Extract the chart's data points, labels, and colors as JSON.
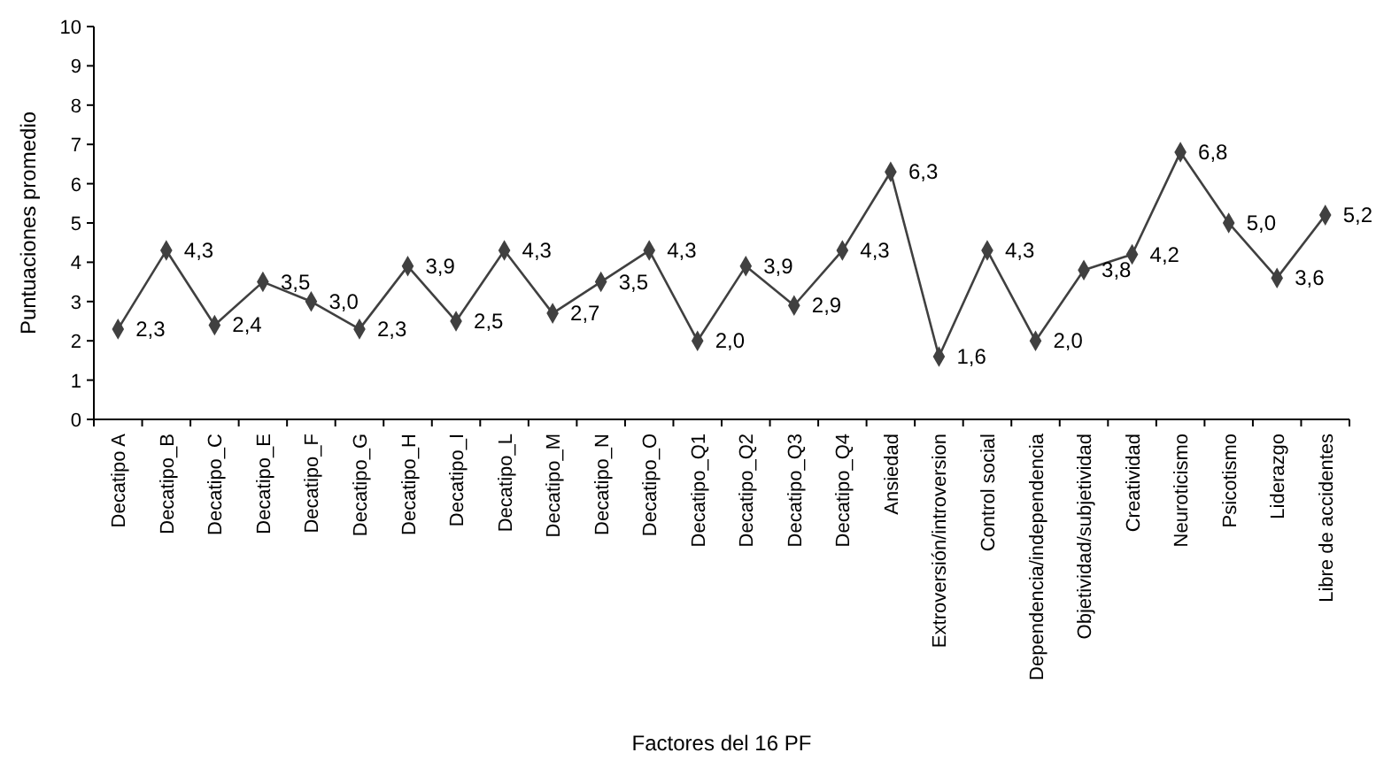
{
  "chart_data": {
    "type": "line",
    "xlabel": "Factores del 16 PF",
    "ylabel": "Puntuaciones promedio",
    "categories": [
      "Decatipo A",
      "Decatipo_B",
      "Decatipo_C",
      "Decatipo_E",
      "Decatipo_F",
      "Decatipo_G",
      "Decatipo_H",
      "Decatipo_I",
      "Decatipo_L",
      "Decatipo_M",
      "Decatipo_N",
      "Decatipo_O",
      "Decatipo_Q1",
      "Decatipo_Q2",
      "Decatipo_Q3",
      "Decatipo_Q4",
      "Ansiedad",
      "Extroversión/introversion",
      "Control social",
      "Dependencia/independencia",
      "Objetividad/subjetividad",
      "Creatividad",
      "Neuroticismo",
      "Psicotismo",
      "Liderazgo",
      "Libre de accidentes"
    ],
    "values": [
      2.3,
      4.3,
      2.4,
      3.5,
      3.0,
      2.3,
      3.9,
      2.5,
      4.3,
      2.7,
      3.5,
      4.3,
      2.0,
      3.9,
      2.9,
      4.3,
      6.3,
      1.6,
      4.3,
      2.0,
      3.8,
      4.2,
      6.8,
      5.0,
      3.6,
      5.2
    ],
    "value_labels": [
      "2,3",
      "4,3",
      "2,4",
      "3,5",
      "3,0",
      "2,3",
      "3,9",
      "2,5",
      "4,3",
      "2,7",
      "3,5",
      "4,3",
      "2,0",
      "3,9",
      "2,9",
      "4,3",
      "6,3",
      "1,6",
      "4,3",
      "2,0",
      "3,8",
      "4,2",
      "6,8",
      "5,0",
      "3,6",
      "5,2"
    ],
    "color": "#404040",
    "marker": "diamond",
    "ylim": [
      0,
      10
    ],
    "yticks": [
      0,
      1,
      2,
      3,
      4,
      5,
      6,
      7,
      8,
      9,
      10
    ],
    "grid": false
  }
}
